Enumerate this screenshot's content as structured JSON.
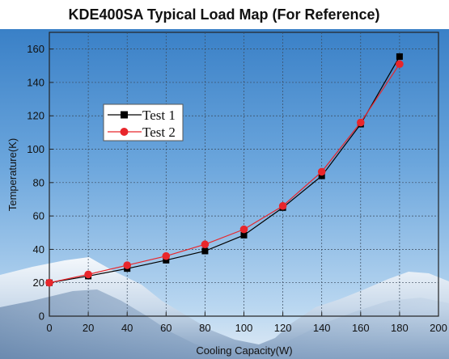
{
  "chart_data": {
    "type": "line",
    "title": "KDE400SA Typical Load Map (For Reference)",
    "xlabel": "Cooling Capacity(W)",
    "ylabel": "Temperature(K)",
    "xlim": [
      0,
      200
    ],
    "ylim": [
      0,
      170
    ],
    "x_ticks": [
      0,
      20,
      40,
      60,
      80,
      100,
      120,
      140,
      160,
      180,
      200
    ],
    "y_ticks": [
      0,
      20,
      40,
      60,
      80,
      100,
      120,
      140,
      160
    ],
    "x_tick_labels": [
      "0",
      "20",
      "40",
      "60",
      "80",
      "100",
      "120",
      "140",
      "160",
      "180",
      "200"
    ],
    "y_tick_labels": [
      "0",
      "20",
      "40",
      "60",
      "80",
      "100",
      "120",
      "140",
      "160"
    ],
    "grid": true,
    "legend_position": "upper-left",
    "background": "photo of blue sky with snowy mountains",
    "series": [
      {
        "name": "Test 1",
        "marker": "square",
        "color": "#000000",
        "x": [
          0,
          20,
          40,
          60,
          80,
          100,
          120,
          140,
          160,
          180
        ],
        "y": [
          20,
          24,
          28.5,
          33.5,
          39,
          48.5,
          65,
          84,
          115,
          155.5
        ]
      },
      {
        "name": "Test 2",
        "marker": "circle",
        "color": "#e8262b",
        "x": [
          0,
          20,
          40,
          60,
          80,
          100,
          120,
          140,
          160,
          180
        ],
        "y": [
          20,
          25,
          30.5,
          36,
          43,
          52,
          66,
          86.5,
          116,
          151
        ]
      }
    ]
  }
}
